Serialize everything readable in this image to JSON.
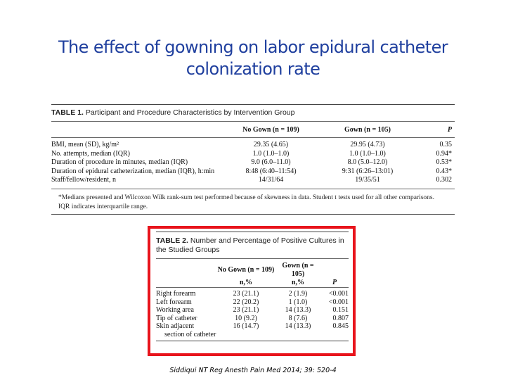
{
  "slide": {
    "title": "The effect of gowning on labor epidural catheter colonization rate",
    "citation": "Siddiqui NT Reg Anesth Pain Med 2014; 39: 520-4"
  },
  "table1": {
    "label": "TABLE 1.",
    "caption": "Participant and Procedure Characteristics by Intervention Group",
    "headers": [
      "",
      "No Gown (n = 109)",
      "Gown (n = 105)",
      "P"
    ],
    "rows": [
      [
        "BMI, mean (SD), kg/m²",
        "29.35 (4.65)",
        "29.95 (4.73)",
        "0.35"
      ],
      [
        "No. attempts, median (IQR)",
        "1.0 (1.0–1.0)",
        "1.0 (1.0–1.0)",
        "0.94*"
      ],
      [
        "Duration of procedure in minutes, median (IQR)",
        "9.0 (6.0–11.0)",
        "8.0 (5.0–12.0)",
        "0.53*"
      ],
      [
        "Duration of epidural catheterization, median (IQR), h:min",
        "8:48 (6:40–11:54)",
        "9:31 (6:26–13:01)",
        "0.43*"
      ],
      [
        "Staff/fellow/resident, n",
        "14/31/64",
        "19/35/51",
        "0.302"
      ]
    ],
    "footnotes": [
      "*Medians presented and Wilcoxon Wilk rank-sum test performed because of skewness in data. Student t tests used for all other comparisons.",
      "IQR indicates interquartile range."
    ]
  },
  "table2": {
    "label": "TABLE 2.",
    "caption": "Number and Percentage of Positive Cultures in the Studied Groups",
    "headers": [
      "",
      "No Gown (n = 109)",
      "Gown (n = 105)",
      "P"
    ],
    "subheaders": [
      "",
      "n,%",
      "n,%",
      ""
    ],
    "rows": [
      [
        "Right forearm",
        "23 (21.1)",
        "2 (1.9)",
        "<0.001"
      ],
      [
        "Left forearm",
        "22 (20.2)",
        "1 (1.0)",
        "<0.001"
      ],
      [
        "Working area",
        "23 (21.1)",
        "14 (13.3)",
        "0.151"
      ],
      [
        "Tip of catheter",
        "10 (9.2)",
        "8 (7.6)",
        "0.807"
      ],
      [
        "Skin adjacent",
        "16 (14.7)",
        "14 (13.3)",
        "0.845"
      ]
    ],
    "row_continuation": "section of catheter"
  },
  "colors": {
    "title": "#1f3f9e",
    "highlight_border": "#e8141c"
  }
}
